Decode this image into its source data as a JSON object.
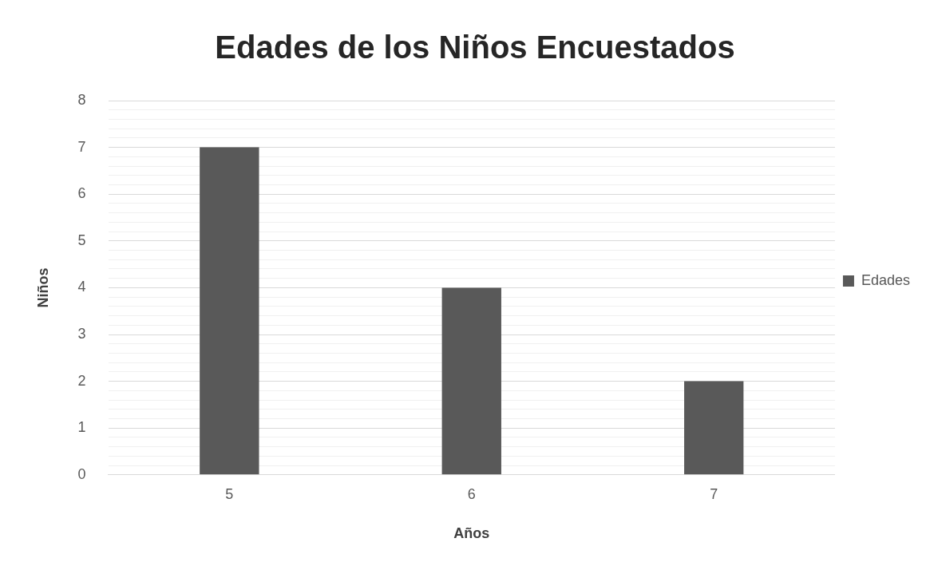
{
  "chart_data": {
    "type": "bar",
    "title": "Edades de los Niños Encuestados",
    "xlabel": "Años",
    "ylabel": "Niños",
    "categories": [
      "5",
      "6",
      "7"
    ],
    "series": [
      {
        "name": "Edades",
        "color": "#595959",
        "values": [
          7,
          4,
          2
        ]
      }
    ],
    "ylim": [
      0,
      8
    ],
    "yticks": [
      0,
      {
        "value": 0.2,
        "label": null
      },
      {
        "value": 0.4,
        "label": null
      },
      {
        "value": 0.6,
        "label": null
      },
      {
        "value": 0.8,
        "label": null
      },
      1,
      {
        "value": 1.2,
        "label": null
      },
      {
        "value": 1.4,
        "label": null
      },
      {
        "value": 1.6,
        "label": null
      },
      {
        "value": 1.8,
        "label": null
      },
      2,
      {
        "value": 2.2,
        "label": null
      },
      {
        "value": 2.4,
        "label": null
      },
      {
        "value": 2.6,
        "label": null
      },
      {
        "value": 2.8,
        "label": null
      },
      3,
      {
        "value": 3.2,
        "label": null
      },
      {
        "value": 3.4,
        "label": null
      },
      {
        "value": 3.6,
        "label": null
      },
      {
        "value": 3.8,
        "label": null
      },
      4,
      {
        "value": 4.2,
        "label": null
      },
      {
        "value": 4.4,
        "label": null
      },
      {
        "value": 4.6,
        "label": null
      },
      {
        "value": 4.8,
        "label": null
      },
      5,
      {
        "value": 5.2,
        "label": null
      },
      {
        "value": 5.4,
        "label": null
      },
      {
        "value": 5.6,
        "label": null
      },
      {
        "value": 5.8,
        "label": null
      },
      6,
      {
        "value": 6.2,
        "label": null
      },
      {
        "value": 6.4,
        "label": null
      },
      {
        "value": 6.6,
        "label": null
      },
      {
        "value": 6.8,
        "label": null
      },
      7,
      {
        "value": 7.2,
        "label": null
      },
      {
        "value": 7.4,
        "label": null
      },
      {
        "value": 7.6,
        "label": null
      },
      {
        "value": 7.8,
        "label": null
      },
      8
    ],
    "grid": "y",
    "legend": "right"
  }
}
